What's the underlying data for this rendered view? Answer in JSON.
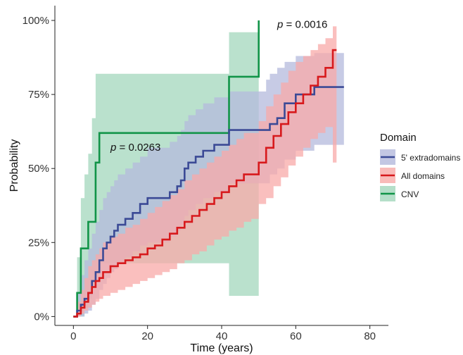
{
  "chart_data": {
    "type": "line",
    "subtype": "step (Kaplan-Meier cumulative incidence) with confidence bands",
    "xlabel": "Time (years)",
    "ylabel": "Probability",
    "xlim": [
      -5,
      85
    ],
    "ylim": [
      -0.03,
      1.05
    ],
    "x_ticks": [
      0,
      20,
      40,
      60,
      80
    ],
    "x_tick_labels": [
      "0",
      "20",
      "40",
      "60",
      "80"
    ],
    "y_ticks": [
      0,
      0.25,
      0.5,
      0.75,
      1.0
    ],
    "y_tick_labels": [
      "0%",
      "25%",
      "50%",
      "75%",
      "100%"
    ],
    "grid": false,
    "legend": {
      "title": "Domain",
      "position": "right",
      "entries": [
        {
          "label": "5' extradomains",
          "line_color": "#3b4a96",
          "fill_color": "#b4b9dc"
        },
        {
          "label": "All domains",
          "line_color": "#d7191c",
          "fill_color": "#f8aaa8"
        },
        {
          "label": "CNV",
          "line_color": "#119448",
          "fill_color": "#a3d7bc"
        }
      ]
    },
    "annotations": [
      {
        "p_label": "p",
        "value": " = 0.0016",
        "x": 55,
        "y": 0.975
      },
      {
        "p_label": "p",
        "value": " = 0.0263",
        "x": 10,
        "y": 0.56
      }
    ],
    "series": [
      {
        "name": "5' extradomains",
        "color": "#3b4a96",
        "fill": "#b4b9dc",
        "x": [
          0,
          1,
          2,
          3,
          4,
          5,
          6,
          7,
          8,
          9,
          10,
          11,
          12,
          14,
          16,
          18,
          20,
          22,
          24,
          26,
          28,
          29,
          30,
          31,
          33,
          35,
          38,
          42,
          50,
          52,
          53,
          55,
          57,
          60,
          65,
          73
        ],
        "y": [
          0,
          0.02,
          0.04,
          0.06,
          0.08,
          0.12,
          0.15,
          0.19,
          0.23,
          0.25,
          0.27,
          0.29,
          0.31,
          0.33,
          0.35,
          0.38,
          0.4,
          0.4,
          0.4,
          0.42,
          0.44,
          0.46,
          0.5,
          0.52,
          0.54,
          0.56,
          0.58,
          0.63,
          0.63,
          0.63,
          0.65,
          0.67,
          0.72,
          0.75,
          0.775,
          0.775
        ],
        "lower": [
          0,
          0,
          0,
          0.01,
          0.02,
          0.04,
          0.06,
          0.09,
          0.11,
          0.13,
          0.15,
          0.16,
          0.18,
          0.2,
          0.22,
          0.24,
          0.25,
          0.25,
          0.25,
          0.27,
          0.29,
          0.31,
          0.34,
          0.36,
          0.38,
          0.4,
          0.42,
          0.45,
          0.45,
          0.45,
          0.48,
          0.5,
          0.53,
          0.56,
          0.58,
          0.58
        ],
        "upper": [
          0,
          0.08,
          0.14,
          0.19,
          0.23,
          0.28,
          0.32,
          0.36,
          0.4,
          0.42,
          0.44,
          0.46,
          0.48,
          0.5,
          0.52,
          0.54,
          0.57,
          0.57,
          0.57,
          0.59,
          0.61,
          0.63,
          0.66,
          0.68,
          0.7,
          0.72,
          0.74,
          0.76,
          0.76,
          0.8,
          0.82,
          0.84,
          0.86,
          0.88,
          0.89,
          0.89
        ]
      },
      {
        "name": "All domains",
        "color": "#d7191c",
        "fill": "#f8aaa8",
        "x": [
          0,
          1,
          2,
          3,
          4,
          5,
          6,
          7,
          8,
          10,
          12,
          14,
          16,
          18,
          20,
          22,
          24,
          26,
          28,
          30,
          32,
          34,
          36,
          38,
          40,
          42,
          44,
          46,
          48,
          50,
          52,
          54,
          56,
          58,
          60,
          62,
          64,
          66,
          68,
          70,
          71
        ],
        "y": [
          0,
          0.01,
          0.03,
          0.05,
          0.08,
          0.1,
          0.12,
          0.13,
          0.15,
          0.17,
          0.18,
          0.19,
          0.2,
          0.21,
          0.23,
          0.24,
          0.26,
          0.28,
          0.3,
          0.32,
          0.34,
          0.36,
          0.38,
          0.4,
          0.42,
          0.44,
          0.46,
          0.48,
          0.48,
          0.52,
          0.57,
          0.61,
          0.65,
          0.69,
          0.72,
          0.75,
          0.78,
          0.81,
          0.84,
          0.9,
          0.9
        ],
        "lower": [
          0,
          0,
          0.01,
          0.02,
          0.03,
          0.04,
          0.05,
          0.06,
          0.07,
          0.08,
          0.09,
          0.1,
          0.11,
          0.12,
          0.13,
          0.14,
          0.15,
          0.16,
          0.18,
          0.19,
          0.21,
          0.22,
          0.24,
          0.26,
          0.27,
          0.29,
          0.3,
          0.32,
          0.33,
          0.38,
          0.4,
          0.44,
          0.47,
          0.51,
          0.54,
          0.57,
          0.6,
          0.62,
          0.64,
          0.52,
          0.52
        ],
        "upper": [
          0,
          0.05,
          0.09,
          0.13,
          0.17,
          0.19,
          0.21,
          0.23,
          0.25,
          0.27,
          0.28,
          0.3,
          0.31,
          0.33,
          0.35,
          0.37,
          0.39,
          0.41,
          0.43,
          0.46,
          0.48,
          0.5,
          0.52,
          0.54,
          0.56,
          0.58,
          0.6,
          0.62,
          0.62,
          0.66,
          0.71,
          0.75,
          0.79,
          0.83,
          0.86,
          0.88,
          0.9,
          0.92,
          0.94,
          0.98,
          0.98
        ]
      },
      {
        "name": "CNV",
        "color": "#119448",
        "fill": "#a3d7bc",
        "x": [
          0,
          1,
          2,
          3,
          4,
          5,
          6,
          7,
          8,
          9,
          10,
          12,
          14,
          16,
          18,
          20,
          22,
          24,
          26,
          28,
          30,
          32,
          34,
          36,
          38,
          40,
          42,
          44,
          46,
          48,
          50
        ],
        "y": [
          0,
          0.08,
          0.23,
          0.23,
          0.32,
          0.32,
          0.52,
          0.62,
          0.62,
          0.62,
          0.62,
          0.62,
          0.62,
          0.62,
          0.62,
          0.62,
          0.62,
          0.62,
          0.62,
          0.62,
          0.62,
          0.62,
          0.62,
          0.62,
          0.62,
          0.62,
          0.81,
          0.81,
          0.81,
          0.81,
          1.0
        ],
        "lower": [
          0,
          0,
          0,
          0.03,
          0.06,
          0.1,
          0.14,
          0.18,
          0.18,
          0.18,
          0.18,
          0.18,
          0.18,
          0.18,
          0.18,
          0.18,
          0.18,
          0.18,
          0.18,
          0.18,
          0.18,
          0.18,
          0.18,
          0.18,
          0.18,
          0.18,
          0.07,
          0.07,
          0.07,
          0.07,
          0.07
        ],
        "upper": [
          0,
          0.2,
          0.4,
          0.48,
          0.55,
          0.67,
          0.82,
          0.82,
          0.82,
          0.82,
          0.82,
          0.82,
          0.82,
          0.82,
          0.82,
          0.82,
          0.82,
          0.82,
          0.82,
          0.82,
          0.82,
          0.82,
          0.82,
          0.82,
          0.82,
          0.82,
          0.96,
          0.96,
          0.96,
          0.96,
          0.96
        ]
      }
    ]
  }
}
